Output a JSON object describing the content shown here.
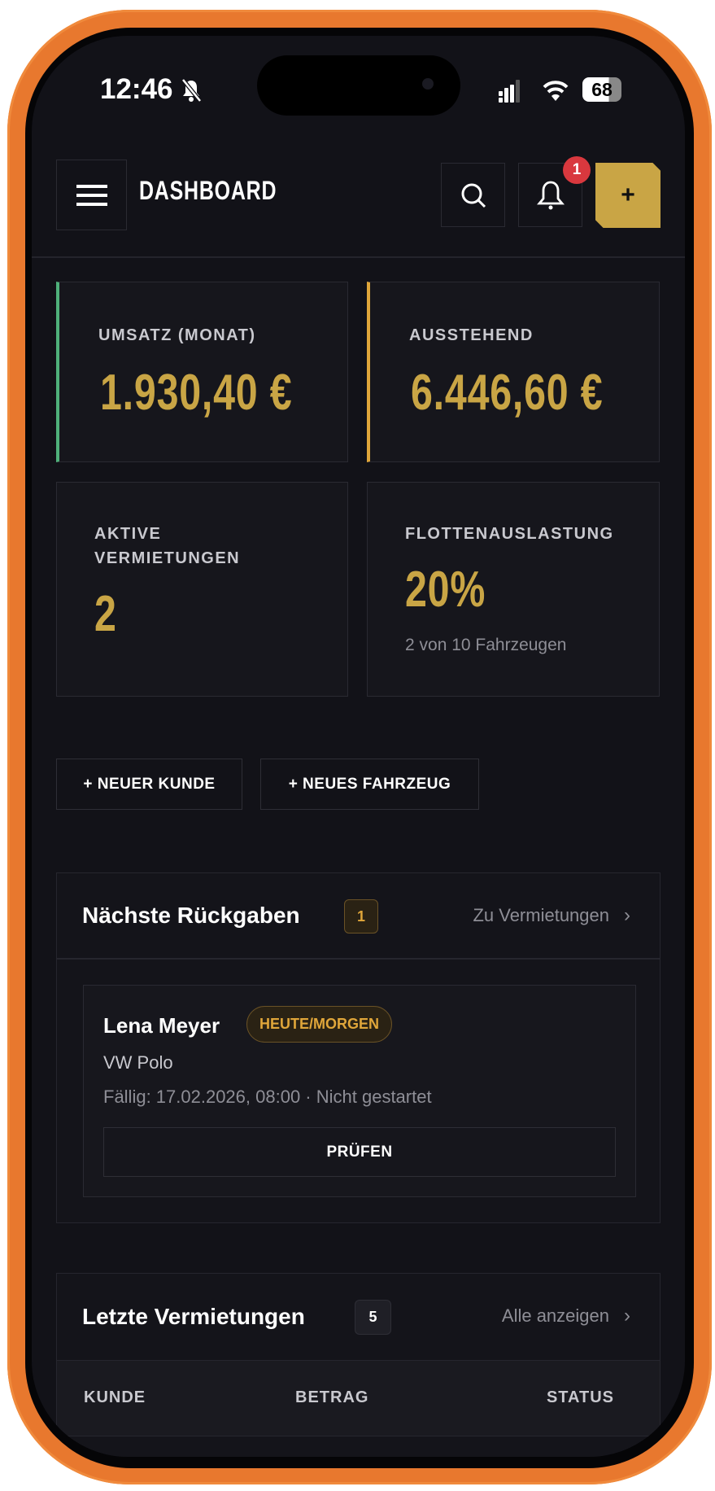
{
  "status_bar": {
    "time": "12:46",
    "battery": "68",
    "mute_icon": "bell-slash-icon",
    "signal_icon": "signal-icon",
    "wifi_icon": "wifi-icon"
  },
  "header": {
    "title": "DASHBOARD",
    "notification_count": "1",
    "add_label": "+"
  },
  "colors": {
    "accent": "#c9a545",
    "green": "#4fb07a",
    "orange": "#e0a63a",
    "badge_red": "#d9383e",
    "background": "#121218"
  },
  "stats": [
    {
      "label": "UMSATZ (MONAT)",
      "value": "1.930,40 €"
    },
    {
      "label": "AUSSTEHEND",
      "value": "6.446,60 €"
    },
    {
      "label": "AKTIVE VERMIETUNGEN",
      "value": "2"
    },
    {
      "label": "FLOTTENAUSLASTUNG",
      "value": "20%",
      "sub": "2 von 10 Fahrzeugen"
    }
  ],
  "actions": {
    "new_customer": "+ NEUER KUNDE",
    "new_vehicle": "+ NEUES FAHRZEUG"
  },
  "returns": {
    "title": "Nächste Rückgaben",
    "count": "1",
    "link": "Zu Vermietungen",
    "item": {
      "name": "Lena Meyer",
      "badge": "HEUTE/MORGEN",
      "vehicle": "VW Polo",
      "due": "Fällig: 17.02.2026, 08:00 · Nicht gestartet",
      "action": "PRÜFEN"
    }
  },
  "recent": {
    "title": "Letzte Vermietungen",
    "count": "5",
    "link": "Alle anzeigen",
    "columns": [
      "KUNDE",
      "BETRAG",
      "STATUS"
    ]
  }
}
